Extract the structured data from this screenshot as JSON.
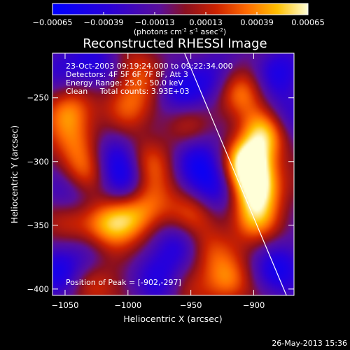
{
  "chart_data": {
    "type": "heatmap",
    "title": "Reconstructed RHESSI Image",
    "xlabel": "Heliocentric X (arcsec)",
    "ylabel": "Heliocentric Y (arcsec)",
    "xlim": [
      -1060,
      -868
    ],
    "ylim": [
      -405,
      -215
    ],
    "x_ticks": [
      -1050,
      -1000,
      -950,
      -900
    ],
    "y_ticks": [
      -250,
      -300,
      -350,
      -400
    ],
    "colorbar": {
      "min": -0.00065,
      "max": 0.00065,
      "tick_values": [
        -0.00065,
        -0.00039,
        -0.00013,
        0.00013,
        0.00039,
        0.00065
      ],
      "tick_labels": [
        "-0.00065",
        "-0.00039",
        "-0.00013",
        "0.00013",
        "0.00039",
        "0.00065"
      ],
      "label_parts": [
        "(photons cm",
        "-2",
        " s",
        "-1",
        " asec",
        "-2",
        ")"
      ]
    },
    "annotations": [
      "23-Oct-2003 09:19:24.000 to 09:22:34.000",
      "Detectors: 4F 5F 6F 7F 8F, Att 3",
      "Energy Range: 25.0 - 50.0 keV",
      "Clean     Total counts: 3.93E+03"
    ],
    "peak_label": "Position of Peak = [-902,-297]",
    "peak_position": [
      -902,
      -297
    ],
    "limb_line": [
      [
        -955,
        -215
      ],
      [
        -874,
        -405
      ]
    ],
    "hotspots": [
      {
        "x": -905,
        "y": -300,
        "v": 1.0
      },
      {
        "x": -898,
        "y": -320,
        "v": 0.9
      },
      {
        "x": -890,
        "y": -275,
        "v": 0.75
      },
      {
        "x": -910,
        "y": -245,
        "v": 0.6
      },
      {
        "x": -900,
        "y": -345,
        "v": 0.6
      },
      {
        "x": -920,
        "y": -395,
        "v": 0.5
      },
      {
        "x": -935,
        "y": -370,
        "v": 0.4
      },
      {
        "x": -1048,
        "y": -260,
        "v": 0.55
      },
      {
        "x": -1040,
        "y": -285,
        "v": 0.45
      },
      {
        "x": -1035,
        "y": -310,
        "v": 0.5
      },
      {
        "x": -1045,
        "y": -345,
        "v": 0.35
      },
      {
        "x": -1020,
        "y": -350,
        "v": 0.55
      },
      {
        "x": -1000,
        "y": -345,
        "v": 0.45
      },
      {
        "x": -980,
        "y": -338,
        "v": 0.35
      },
      {
        "x": -1000,
        "y": -255,
        "v": 0.5
      },
      {
        "x": -990,
        "y": -230,
        "v": 0.4
      },
      {
        "x": -985,
        "y": -300,
        "v": 0.5
      },
      {
        "x": -988,
        "y": -320,
        "v": 0.3
      },
      {
        "x": -950,
        "y": -340,
        "v": 0.4
      },
      {
        "x": -955,
        "y": -270,
        "v": 0.3
      },
      {
        "x": -1030,
        "y": -398,
        "v": 0.45
      },
      {
        "x": -1010,
        "y": -375,
        "v": 0.25
      },
      {
        "x": -955,
        "y": -395,
        "v": 0.3
      }
    ],
    "coldspots": [
      {
        "x": -1000,
        "y": -315,
        "v": -0.6
      },
      {
        "x": -1010,
        "y": -295,
        "v": -0.45
      },
      {
        "x": -975,
        "y": -390,
        "v": -0.55
      },
      {
        "x": -960,
        "y": -365,
        "v": -0.45
      },
      {
        "x": -930,
        "y": -320,
        "v": -0.55
      },
      {
        "x": -945,
        "y": -298,
        "v": -0.5
      },
      {
        "x": -960,
        "y": -245,
        "v": -0.5
      },
      {
        "x": -930,
        "y": -235,
        "v": -0.4
      },
      {
        "x": -1045,
        "y": -325,
        "v": -0.45
      },
      {
        "x": -1055,
        "y": -390,
        "v": -0.5
      },
      {
        "x": -1030,
        "y": -375,
        "v": -0.4
      },
      {
        "x": -880,
        "y": -230,
        "v": -0.5
      },
      {
        "x": -875,
        "y": -265,
        "v": -0.45
      },
      {
        "x": -878,
        "y": -385,
        "v": -0.55
      },
      {
        "x": -1025,
        "y": -225,
        "v": -0.4
      },
      {
        "x": -1055,
        "y": -225,
        "v": -0.3
      }
    ]
  },
  "footer": {
    "timestamp": "26-May-2013 15:36"
  }
}
